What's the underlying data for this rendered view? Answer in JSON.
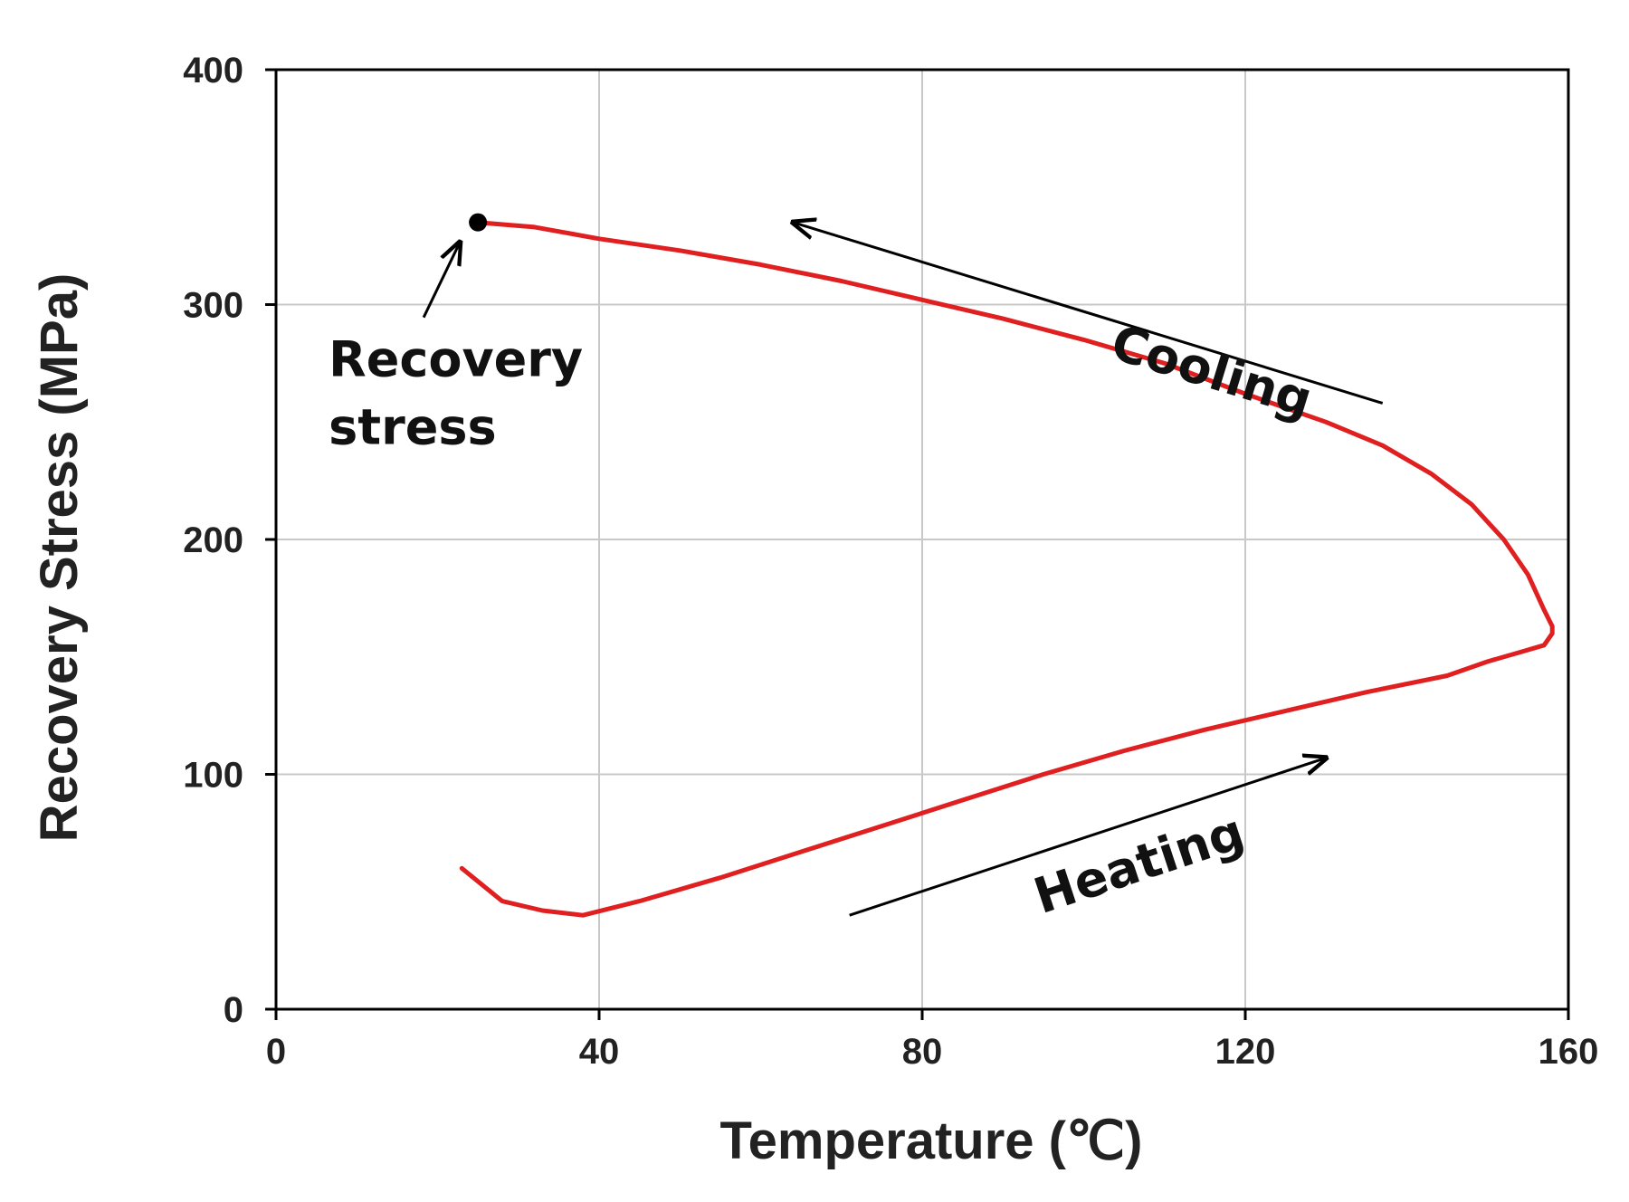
{
  "chart_data": {
    "type": "line",
    "title": "",
    "xlabel": "Temperature (℃)",
    "ylabel": "Recovery Stress (MPa)",
    "xlim": [
      0,
      160
    ],
    "ylim": [
      0,
      400
    ],
    "xticks": [
      0,
      40,
      80,
      120,
      160
    ],
    "yticks": [
      0,
      100,
      200,
      300,
      400
    ],
    "grid": true,
    "colors": {
      "line": "#e02020",
      "axis": "#000000",
      "grid": "#c8c8c8",
      "text": "#222222"
    },
    "series": [
      {
        "name": "Recovery stress curve",
        "x": [
          23,
          28,
          33,
          38,
          45,
          55,
          65,
          75,
          85,
          95,
          105,
          115,
          125,
          135,
          145,
          150,
          154,
          157,
          158,
          158,
          157,
          155,
          152,
          148,
          143,
          137,
          130,
          120,
          110,
          100,
          90,
          80,
          70,
          60,
          50,
          40,
          32,
          25
        ],
        "y": [
          60,
          46,
          42,
          40,
          46,
          56,
          67,
          78,
          89,
          100,
          110,
          119,
          127,
          135,
          142,
          148,
          152,
          155,
          160,
          163,
          170,
          185,
          200,
          215,
          228,
          240,
          250,
          262,
          275,
          285,
          294,
          302,
          310,
          317,
          323,
          328,
          333,
          335
        ]
      }
    ],
    "point": {
      "label": "Recovery stress",
      "x": 25,
      "y": 335
    },
    "annotations": [
      {
        "id": "point",
        "line1": "Recovery",
        "line2": "stress"
      },
      {
        "id": "cooling",
        "text": "Cooling",
        "from": [
          137,
          258
        ],
        "to": [
          64,
          335
        ]
      },
      {
        "id": "heating",
        "text": "Heating",
        "from": [
          71,
          40
        ],
        "to": [
          130,
          107
        ]
      }
    ]
  }
}
